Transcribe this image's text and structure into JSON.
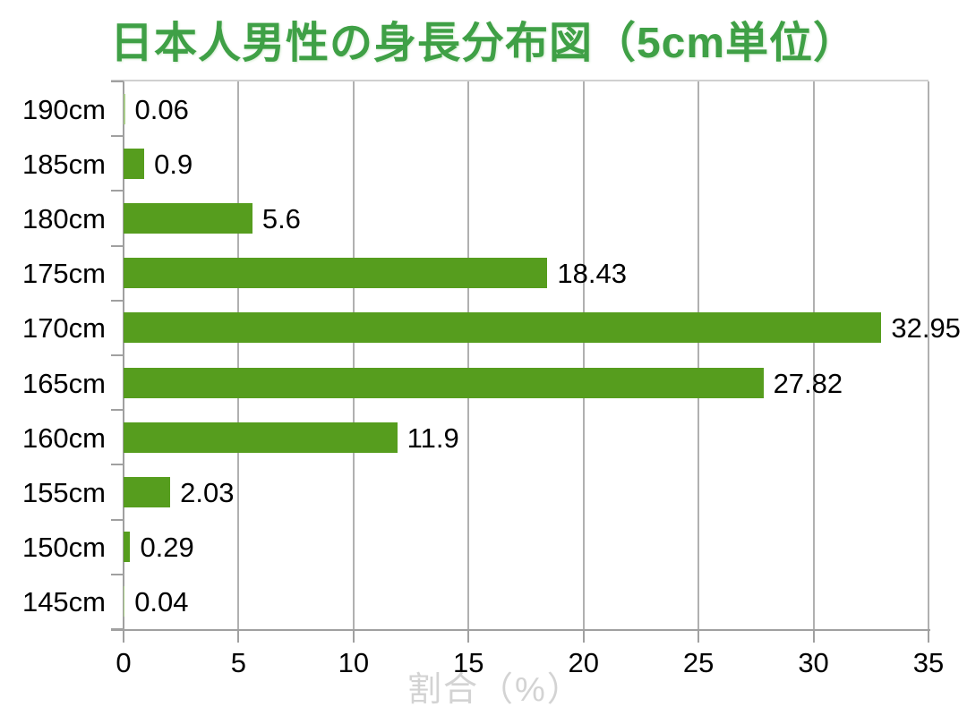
{
  "chart_data": {
    "type": "bar",
    "orientation": "horizontal",
    "title": "日本人男性の身長分布図（5cm単位）",
    "xlabel": "割合（%）",
    "categories": [
      "190cm",
      "185cm",
      "180cm",
      "175cm",
      "170cm",
      "165cm",
      "160cm",
      "155cm",
      "150cm",
      "145cm"
    ],
    "values": [
      0.06,
      0.9,
      5.6,
      18.43,
      32.95,
      27.82,
      11.9,
      2.03,
      0.29,
      0.04
    ],
    "value_labels": [
      "0.06",
      "0.9",
      "5.6",
      "18.43",
      "32.95",
      "27.82",
      "11.9",
      "2.03",
      "0.29",
      "0.04"
    ],
    "x_ticks": [
      "0",
      "5",
      "10",
      "15",
      "20",
      "25",
      "30",
      "35"
    ],
    "xlim": [
      0,
      35
    ],
    "grid": true,
    "legend": "none",
    "colors": {
      "bar": "#569d1e",
      "bar_tiny": "#a9cd8a",
      "title": "#3fa046",
      "xlabel": "#d3d3d3",
      "gridline": "#b0b0b0",
      "axis": "#a0a0a0",
      "plot_border": "#d0d0d0",
      "text": "#000000"
    }
  }
}
